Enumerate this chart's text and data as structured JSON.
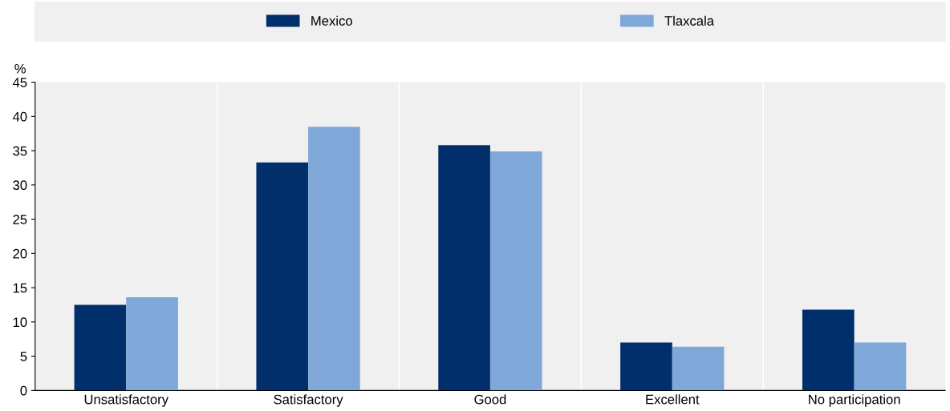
{
  "chart_data": {
    "type": "bar",
    "ylabel": "%",
    "categories": [
      "Unsatisfactory",
      "Satisfactory",
      "Good",
      "Excellent",
      "No participation"
    ],
    "series": [
      {
        "name": "Mexico",
        "color": "#002f6c",
        "values": [
          12.5,
          33.3,
          35.8,
          7.0,
          11.8
        ]
      },
      {
        "name": "Tlaxcala",
        "color": "#7fa8d9",
        "values": [
          13.6,
          38.5,
          34.9,
          6.4,
          7.0
        ]
      }
    ],
    "ylim": [
      0,
      45
    ],
    "yticks": [
      0,
      5,
      10,
      15,
      20,
      25,
      30,
      35,
      40,
      45
    ],
    "grid": "x",
    "legend": "top"
  }
}
